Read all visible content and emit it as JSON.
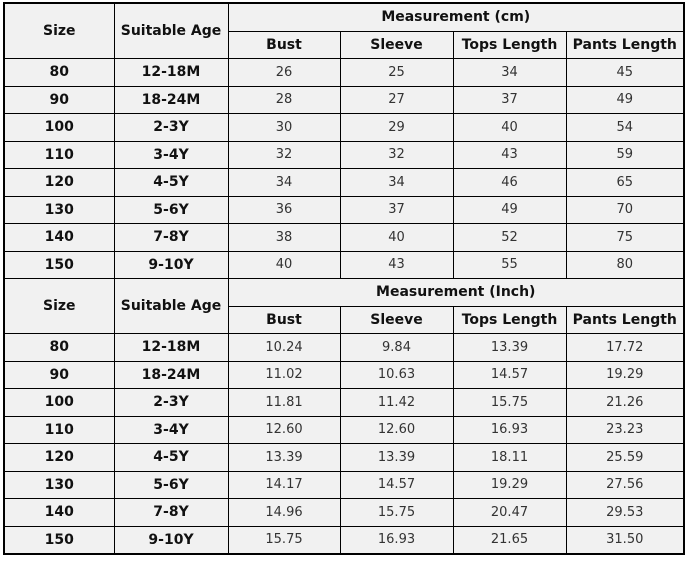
{
  "headers": {
    "size": "Size",
    "age": "Suitable Age",
    "bust": "Bust",
    "sleeve": "Sleeve",
    "tops": "Tops Length",
    "pants": "Pants Length"
  },
  "tables": [
    {
      "title": "Measurement (cm)",
      "rows": [
        [
          "80",
          "12-18M",
          "26",
          "25",
          "34",
          "45"
        ],
        [
          "90",
          "18-24M",
          "28",
          "27",
          "37",
          "49"
        ],
        [
          "100",
          "2-3Y",
          "30",
          "29",
          "40",
          "54"
        ],
        [
          "110",
          "3-4Y",
          "32",
          "32",
          "43",
          "59"
        ],
        [
          "120",
          "4-5Y",
          "34",
          "34",
          "46",
          "65"
        ],
        [
          "130",
          "5-6Y",
          "36",
          "37",
          "49",
          "70"
        ],
        [
          "140",
          "7-8Y",
          "38",
          "40",
          "52",
          "75"
        ],
        [
          "150",
          "9-10Y",
          "40",
          "43",
          "55",
          "80"
        ]
      ]
    },
    {
      "title": "Measurement (Inch)",
      "rows": [
        [
          "80",
          "12-18M",
          "10.24",
          "9.84",
          "13.39",
          "17.72"
        ],
        [
          "90",
          "18-24M",
          "11.02",
          "10.63",
          "14.57",
          "19.29"
        ],
        [
          "100",
          "2-3Y",
          "11.81",
          "11.42",
          "15.75",
          "21.26"
        ],
        [
          "110",
          "3-4Y",
          "12.60",
          "12.60",
          "16.93",
          "23.23"
        ],
        [
          "120",
          "4-5Y",
          "13.39",
          "13.39",
          "18.11",
          "25.59"
        ],
        [
          "130",
          "5-6Y",
          "14.17",
          "14.57",
          "19.29",
          "27.56"
        ],
        [
          "140",
          "7-8Y",
          "14.96",
          "15.75",
          "20.47",
          "29.53"
        ],
        [
          "150",
          "9-10Y",
          "15.75",
          "16.93",
          "21.65",
          "31.50"
        ]
      ]
    }
  ]
}
